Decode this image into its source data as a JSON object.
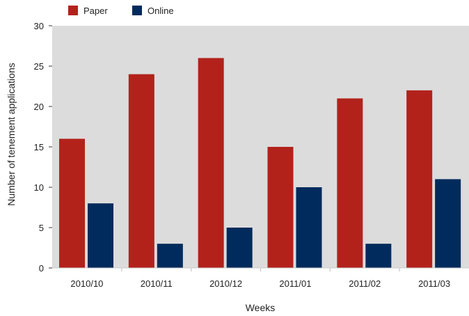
{
  "chart_data": {
    "type": "bar",
    "title": "",
    "xlabel": "Weeks",
    "ylabel": "Number of tenement applications",
    "categories": [
      "2010/10",
      "2010/11",
      "2010/12",
      "2011/01",
      "2011/02",
      "2011/03"
    ],
    "series": [
      {
        "name": "Paper",
        "color": "#b2221b",
        "values": [
          16,
          24,
          26,
          15,
          21,
          22
        ]
      },
      {
        "name": "Online",
        "color": "#002b5c",
        "values": [
          8,
          3,
          5,
          10,
          3,
          11
        ]
      }
    ],
    "ylim": [
      0,
      30
    ],
    "yticks": [
      "0",
      "5",
      "10",
      "15",
      "20",
      "25",
      "30"
    ],
    "grid": false,
    "legend_position": "top-left",
    "plot_background": "#dcdcdc"
  }
}
